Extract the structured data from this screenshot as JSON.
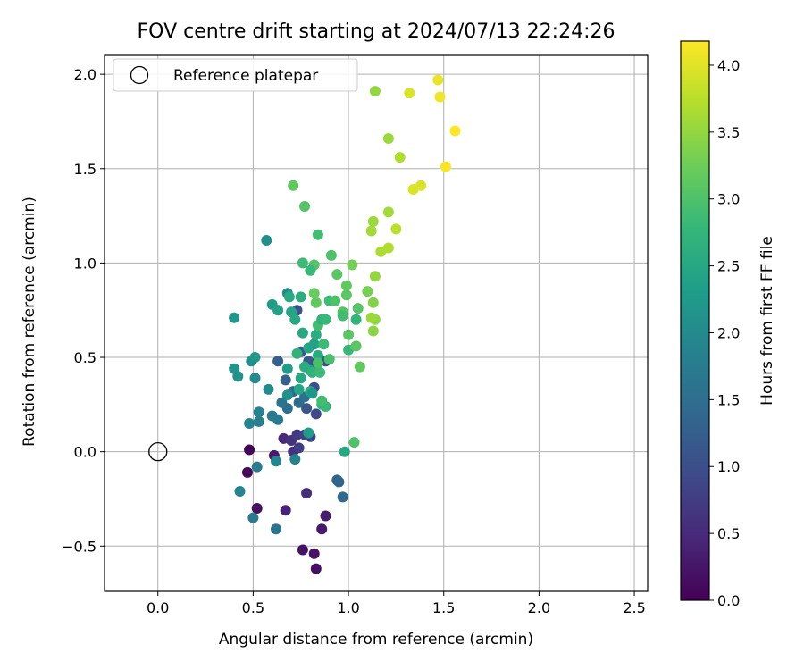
{
  "chart_data": {
    "type": "scatter",
    "title": "FOV centre drift starting at 2024/07/13 22:24:26",
    "xlabel": "Angular distance from reference (arcmin)",
    "ylabel": "Rotation from reference (arcmin)",
    "xlim": [
      -0.28,
      2.57
    ],
    "ylim": [
      -0.74,
      2.1
    ],
    "x_ticks": [
      0.0,
      0.5,
      1.0,
      1.5,
      2.0,
      2.5
    ],
    "x_tick_labels": [
      "0.0",
      "0.5",
      "1.0",
      "1.5",
      "2.0",
      "2.5"
    ],
    "y_ticks": [
      -0.5,
      0.0,
      0.5,
      1.0,
      1.5,
      2.0
    ],
    "y_tick_labels": [
      "−0.5",
      "0.0",
      "0.5",
      "1.0",
      "1.5",
      "2.0"
    ],
    "grid": true,
    "legend": {
      "placement": "upper-left",
      "entries": [
        {
          "label": "Reference platepar",
          "marker": "open-circle",
          "x": 0.0,
          "y": 0.0
        }
      ]
    },
    "colorbar": {
      "label": "Hours from first FF file",
      "colormap": "viridis",
      "range": [
        0.0,
        4.18
      ],
      "ticks": [
        0.0,
        0.5,
        1.0,
        1.5,
        2.0,
        2.5,
        3.0,
        3.5,
        4.0
      ],
      "tick_labels": [
        "0.0",
        "0.5",
        "1.0",
        "1.5",
        "2.0",
        "2.5",
        "3.0",
        "3.5",
        "4.0"
      ]
    },
    "points": [
      [
        0.48,
        0.01,
        0.05
      ],
      [
        0.47,
        -0.11,
        0.08
      ],
      [
        0.52,
        -0.3,
        0.15
      ],
      [
        0.83,
        -0.62,
        0.18
      ],
      [
        0.82,
        -0.54,
        0.22
      ],
      [
        0.76,
        -0.52,
        0.2
      ],
      [
        0.86,
        -0.41,
        0.28
      ],
      [
        0.88,
        -0.34,
        0.32
      ],
      [
        0.67,
        -0.31,
        0.4
      ],
      [
        0.78,
        -0.22,
        0.55
      ],
      [
        0.61,
        -0.02,
        0.3
      ],
      [
        0.66,
        0.07,
        0.5
      ],
      [
        0.7,
        0.06,
        0.62
      ],
      [
        0.73,
        0.09,
        0.7
      ],
      [
        0.71,
        0.0,
        0.6
      ],
      [
        0.74,
        0.02,
        0.75
      ],
      [
        0.77,
        0.09,
        0.8
      ],
      [
        0.8,
        0.08,
        0.85
      ],
      [
        0.83,
        0.2,
        0.9
      ],
      [
        0.88,
        0.48,
        1.0
      ],
      [
        0.73,
        0.75,
        1.05
      ],
      [
        0.78,
        0.23,
        1.1
      ],
      [
        0.82,
        0.34,
        1.0
      ],
      [
        0.79,
        0.48,
        1.2
      ],
      [
        0.83,
        0.47,
        0.95
      ],
      [
        0.75,
        0.53,
        1.15
      ],
      [
        0.94,
        -0.15,
        1.3
      ],
      [
        0.97,
        -0.24,
        1.4
      ],
      [
        0.95,
        -0.16,
        1.35
      ],
      [
        0.67,
        0.38,
        1.3
      ],
      [
        0.63,
        0.48,
        1.25
      ],
      [
        0.71,
        0.32,
        1.4
      ],
      [
        0.74,
        0.26,
        1.45
      ],
      [
        0.77,
        0.29,
        1.55
      ],
      [
        0.68,
        0.23,
        1.5
      ],
      [
        0.65,
        0.26,
        1.6
      ],
      [
        0.63,
        0.17,
        1.7
      ],
      [
        0.6,
        0.19,
        1.75
      ],
      [
        0.53,
        0.16,
        1.8
      ],
      [
        0.53,
        0.21,
        1.85
      ],
      [
        0.48,
        0.15,
        1.9
      ],
      [
        0.52,
        -0.08,
        1.75
      ],
      [
        0.62,
        -0.05,
        1.9
      ],
      [
        0.72,
        -0.04,
        1.85
      ],
      [
        0.58,
        0.33,
        2.0
      ],
      [
        0.62,
        -0.41,
        1.6
      ],
      [
        0.5,
        -0.35,
        1.7
      ],
      [
        0.43,
        -0.21,
        1.9
      ],
      [
        0.49,
        0.48,
        2.05
      ],
      [
        0.51,
        0.39,
        2.0
      ],
      [
        0.42,
        0.4,
        2.1
      ],
      [
        0.4,
        0.44,
        2.15
      ],
      [
        0.51,
        0.5,
        2.2
      ],
      [
        0.57,
        1.12,
        2.05
      ],
      [
        0.4,
        0.71,
        2.2
      ],
      [
        0.68,
        0.84,
        2.0
      ],
      [
        0.6,
        0.78,
        2.3
      ],
      [
        0.63,
        0.75,
        2.4
      ],
      [
        0.7,
        0.74,
        2.45
      ],
      [
        0.69,
        0.82,
        2.55
      ],
      [
        0.75,
        0.82,
        2.6
      ],
      [
        0.72,
        0.7,
        2.5
      ],
      [
        0.76,
        0.63,
        2.5
      ],
      [
        0.79,
        0.55,
        2.45
      ],
      [
        0.82,
        0.57,
        2.4
      ],
      [
        0.8,
        0.43,
        2.35
      ],
      [
        0.83,
        0.62,
        2.6
      ],
      [
        0.84,
        0.51,
        2.55
      ],
      [
        0.73,
        0.52,
        2.7
      ],
      [
        0.77,
        0.45,
        2.6
      ],
      [
        0.81,
        0.42,
        2.7
      ],
      [
        0.75,
        0.39,
        2.5
      ],
      [
        0.74,
        0.33,
        2.45
      ],
      [
        0.8,
        0.32,
        2.55
      ],
      [
        0.86,
        0.25,
        2.75
      ],
      [
        0.88,
        0.24,
        2.8
      ],
      [
        0.86,
        0.27,
        2.9
      ],
      [
        0.85,
        0.42,
        2.85
      ],
      [
        0.84,
        0.47,
        2.95
      ],
      [
        0.87,
        0.57,
        2.85
      ],
      [
        0.84,
        0.67,
        2.9
      ],
      [
        0.86,
        0.7,
        2.7
      ],
      [
        0.9,
        0.8,
        2.85
      ],
      [
        0.9,
        0.49,
        2.95
      ],
      [
        0.93,
        0.8,
        3.0
      ],
      [
        0.97,
        0.74,
        3.05
      ],
      [
        0.99,
        0.83,
        3.1
      ],
      [
        0.97,
        0.72,
        2.9
      ],
      [
        0.99,
        0.88,
        3.15
      ],
      [
        1.0,
        0.62,
        3.1
      ],
      [
        1.0,
        0.54,
        2.8
      ],
      [
        1.04,
        0.7,
        2.75
      ],
      [
        1.04,
        0.56,
        3.1
      ],
      [
        1.05,
        0.76,
        3.05
      ],
      [
        1.06,
        0.45,
        3.15
      ],
      [
        0.94,
        0.94,
        3.1
      ],
      [
        0.91,
        1.04,
        3.0
      ],
      [
        0.82,
        0.99,
        3.05
      ],
      [
        0.8,
        0.96,
        2.8
      ],
      [
        0.76,
        1.0,
        2.85
      ],
      [
        0.77,
        1.3,
        3.05
      ],
      [
        0.84,
        1.15,
        2.9
      ],
      [
        0.71,
        1.41,
        3.15
      ],
      [
        0.82,
        0.84,
        3.2
      ],
      [
        0.83,
        0.79,
        3.15
      ],
      [
        0.98,
        0.0,
        2.5
      ],
      [
        1.03,
        0.05,
        3.0
      ],
      [
        1.02,
        0.99,
        3.3
      ],
      [
        1.1,
        0.85,
        3.3
      ],
      [
        1.13,
        0.79,
        3.4
      ],
      [
        1.14,
        0.7,
        3.5
      ],
      [
        1.13,
        0.64,
        3.45
      ],
      [
        1.12,
        0.71,
        3.55
      ],
      [
        1.14,
        0.93,
        3.5
      ],
      [
        1.12,
        1.17,
        3.6
      ],
      [
        1.13,
        1.22,
        3.55
      ],
      [
        1.17,
        1.06,
        3.65
      ],
      [
        1.21,
        1.08,
        3.7
      ],
      [
        1.21,
        1.27,
        3.6
      ],
      [
        1.25,
        1.18,
        3.75
      ],
      [
        1.27,
        1.56,
        3.7
      ],
      [
        1.21,
        1.66,
        3.55
      ],
      [
        1.14,
        1.91,
        3.5
      ],
      [
        1.34,
        1.39,
        3.95
      ],
      [
        1.38,
        1.41,
        3.95
      ],
      [
        1.32,
        1.9,
        3.95
      ],
      [
        1.47,
        1.97,
        4.05
      ],
      [
        1.48,
        1.88,
        4.1
      ],
      [
        1.51,
        1.51,
        4.15
      ],
      [
        1.56,
        1.7,
        4.18
      ],
      [
        0.68,
        0.3,
        2.1
      ],
      [
        0.81,
        0.31,
        2.2
      ],
      [
        0.88,
        0.7,
        2.8
      ],
      [
        0.68,
        0.44,
        2.3
      ],
      [
        0.79,
        0.1,
        2.3
      ]
    ]
  }
}
